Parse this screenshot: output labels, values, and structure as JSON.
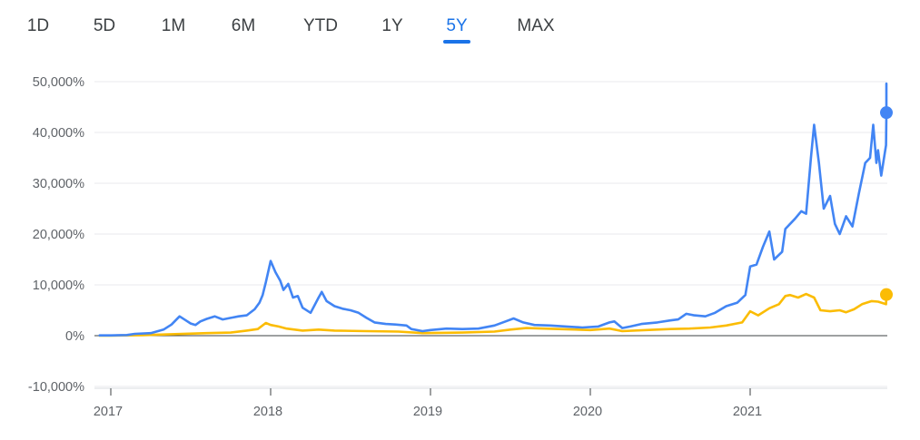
{
  "range_tabs": [
    {
      "label": "1D",
      "active": false
    },
    {
      "label": "5D",
      "active": false
    },
    {
      "label": "1M",
      "active": false
    },
    {
      "label": "6M",
      "active": false
    },
    {
      "label": "YTD",
      "active": false
    },
    {
      "label": "1Y",
      "active": false
    },
    {
      "label": "5Y",
      "active": true
    },
    {
      "label": "MAX",
      "active": false
    }
  ],
  "chart_data": {
    "type": "line",
    "title": "",
    "xlabel": "",
    "ylabel": "",
    "ylim": [
      -10000,
      50000
    ],
    "xlim": [
      2016.93,
      2021.83
    ],
    "y_ticks": [
      50000,
      40000,
      30000,
      20000,
      10000,
      0,
      -10000
    ],
    "y_tick_labels": [
      "50,000%",
      "40,000%",
      "30,000%",
      "20,000%",
      "10,000%",
      "0%",
      "-10,000%"
    ],
    "x_ticks": [
      2017,
      2018,
      2019,
      2020,
      2021
    ],
    "x_tick_labels": [
      "2017",
      "2018",
      "2019",
      "2020",
      "2021"
    ],
    "grid": true,
    "series": [
      {
        "color": "#4285f4",
        "end_marker": true,
        "points": [
          [
            2016.93,
            50
          ],
          [
            2017.0,
            60
          ],
          [
            2017.1,
            120
          ],
          [
            2017.15,
            350
          ],
          [
            2017.25,
            500
          ],
          [
            2017.33,
            1200
          ],
          [
            2017.38,
            2200
          ],
          [
            2017.43,
            3800
          ],
          [
            2017.47,
            3000
          ],
          [
            2017.5,
            2400
          ],
          [
            2017.53,
            2100
          ],
          [
            2017.56,
            2800
          ],
          [
            2017.6,
            3300
          ],
          [
            2017.65,
            3800
          ],
          [
            2017.7,
            3200
          ],
          [
            2017.75,
            3500
          ],
          [
            2017.8,
            3800
          ],
          [
            2017.85,
            4000
          ],
          [
            2017.9,
            5200
          ],
          [
            2017.93,
            6500
          ],
          [
            2017.95,
            8000
          ],
          [
            2017.97,
            10500
          ],
          [
            2018.0,
            14700
          ],
          [
            2018.03,
            12500
          ],
          [
            2018.06,
            10800
          ],
          [
            2018.08,
            9000
          ],
          [
            2018.11,
            10200
          ],
          [
            2018.14,
            7500
          ],
          [
            2018.17,
            7800
          ],
          [
            2018.2,
            5500
          ],
          [
            2018.25,
            4500
          ],
          [
            2018.3,
            7500
          ],
          [
            2018.32,
            8600
          ],
          [
            2018.35,
            6800
          ],
          [
            2018.4,
            5800
          ],
          [
            2018.45,
            5300
          ],
          [
            2018.5,
            5000
          ],
          [
            2018.55,
            4500
          ],
          [
            2018.6,
            3500
          ],
          [
            2018.65,
            2600
          ],
          [
            2018.72,
            2300
          ],
          [
            2018.78,
            2200
          ],
          [
            2018.85,
            2000
          ],
          [
            2018.88,
            1300
          ],
          [
            2018.95,
            900
          ],
          [
            2019.0,
            1100
          ],
          [
            2019.1,
            1400
          ],
          [
            2019.2,
            1300
          ],
          [
            2019.3,
            1400
          ],
          [
            2019.4,
            2000
          ],
          [
            2019.47,
            2800
          ],
          [
            2019.52,
            3400
          ],
          [
            2019.58,
            2600
          ],
          [
            2019.65,
            2100
          ],
          [
            2019.75,
            2000
          ],
          [
            2019.85,
            1800
          ],
          [
            2019.95,
            1600
          ],
          [
            2020.05,
            1800
          ],
          [
            2020.12,
            2600
          ],
          [
            2020.15,
            2800
          ],
          [
            2020.2,
            1500
          ],
          [
            2020.25,
            1800
          ],
          [
            2020.32,
            2300
          ],
          [
            2020.42,
            2600
          ],
          [
            2020.5,
            3000
          ],
          [
            2020.55,
            3200
          ],
          [
            2020.6,
            4300
          ],
          [
            2020.65,
            4000
          ],
          [
            2020.72,
            3800
          ],
          [
            2020.78,
            4500
          ],
          [
            2020.85,
            5800
          ],
          [
            2020.92,
            6500
          ],
          [
            2020.97,
            8000
          ],
          [
            2021.0,
            13600
          ],
          [
            2021.04,
            14000
          ],
          [
            2021.08,
            17500
          ],
          [
            2021.12,
            20500
          ],
          [
            2021.15,
            15000
          ],
          [
            2021.2,
            16500
          ],
          [
            2021.22,
            21000
          ],
          [
            2021.28,
            23000
          ],
          [
            2021.32,
            24500
          ],
          [
            2021.35,
            24000
          ],
          [
            2021.38,
            35000
          ],
          [
            2021.4,
            41500
          ],
          [
            2021.43,
            34000
          ],
          [
            2021.46,
            25000
          ],
          [
            2021.5,
            27500
          ],
          [
            2021.53,
            22000
          ],
          [
            2021.56,
            20000
          ],
          [
            2021.6,
            23500
          ],
          [
            2021.64,
            21500
          ],
          [
            2021.68,
            28000
          ],
          [
            2021.72,
            34000
          ],
          [
            2021.75,
            35000
          ],
          [
            2021.77,
            41500
          ],
          [
            2021.79,
            34000
          ],
          [
            2021.8,
            36500
          ],
          [
            2021.82,
            31500
          ],
          [
            2021.85,
            37500
          ],
          [
            2021.9,
            43500
          ],
          [
            2021.94,
            48000
          ],
          [
            2021.97,
            49600
          ],
          [
            2022.0,
            43900
          ]
        ]
      },
      {
        "color": "#fbbc04",
        "end_marker": true,
        "points": [
          [
            2016.93,
            0
          ],
          [
            2017.0,
            20
          ],
          [
            2017.2,
            100
          ],
          [
            2017.4,
            300
          ],
          [
            2017.6,
            500
          ],
          [
            2017.75,
            600
          ],
          [
            2017.85,
            1000
          ],
          [
            2017.92,
            1300
          ],
          [
            2017.97,
            2500
          ],
          [
            2018.0,
            2100
          ],
          [
            2018.05,
            1800
          ],
          [
            2018.1,
            1400
          ],
          [
            2018.2,
            1000
          ],
          [
            2018.3,
            1200
          ],
          [
            2018.4,
            1000
          ],
          [
            2018.6,
            900
          ],
          [
            2018.8,
            800
          ],
          [
            2018.95,
            500
          ],
          [
            2019.2,
            600
          ],
          [
            2019.4,
            800
          ],
          [
            2019.5,
            1200
          ],
          [
            2019.6,
            1500
          ],
          [
            2019.8,
            1300
          ],
          [
            2020.0,
            1100
          ],
          [
            2020.12,
            1400
          ],
          [
            2020.2,
            900
          ],
          [
            2020.35,
            1100
          ],
          [
            2020.5,
            1300
          ],
          [
            2020.62,
            1400
          ],
          [
            2020.75,
            1600
          ],
          [
            2020.85,
            2000
          ],
          [
            2020.95,
            2600
          ],
          [
            2021.0,
            4800
          ],
          [
            2021.05,
            4000
          ],
          [
            2021.12,
            5400
          ],
          [
            2021.18,
            6200
          ],
          [
            2021.22,
            7800
          ],
          [
            2021.25,
            8000
          ],
          [
            2021.3,
            7500
          ],
          [
            2021.35,
            8200
          ],
          [
            2021.4,
            7500
          ],
          [
            2021.44,
            5000
          ],
          [
            2021.5,
            4800
          ],
          [
            2021.56,
            5000
          ],
          [
            2021.6,
            4600
          ],
          [
            2021.65,
            5200
          ],
          [
            2021.7,
            6200
          ],
          [
            2021.76,
            6800
          ],
          [
            2021.8,
            6700
          ],
          [
            2021.85,
            6200
          ],
          [
            2021.9,
            8000
          ],
          [
            2021.95,
            8200
          ],
          [
            2022.0,
            8100
          ]
        ]
      }
    ]
  }
}
